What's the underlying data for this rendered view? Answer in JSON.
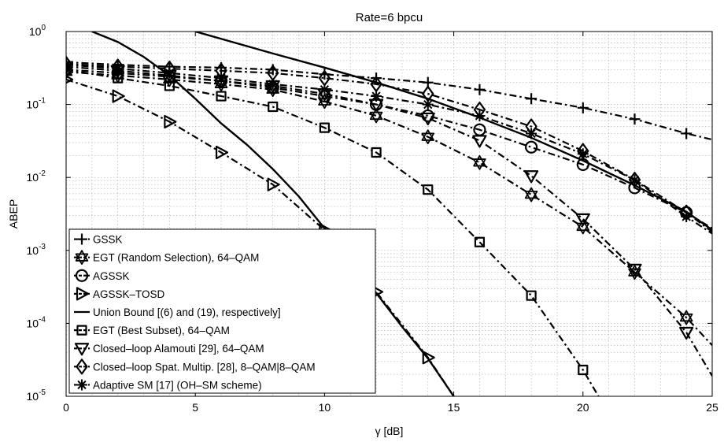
{
  "chart_data": {
    "type": "line",
    "title": "Rate=6 bpcu",
    "xlabel": "γ [dB]",
    "ylabel": "ABEP",
    "xlim": [
      0,
      25
    ],
    "ylim": [
      1e-05,
      1
    ],
    "yscale": "log",
    "grid": true,
    "legend_position": "bottom-left",
    "x_ticks": [
      "0",
      "5",
      "10",
      "15",
      "20",
      "25"
    ],
    "y_ticks": [
      {
        "base": "10",
        "exp": "-5"
      },
      {
        "base": "10",
        "exp": "-4"
      },
      {
        "base": "10",
        "exp": "-3"
      },
      {
        "base": "10",
        "exp": "-2"
      },
      {
        "base": "10",
        "exp": "-1"
      },
      {
        "base": "10",
        "exp": "0"
      }
    ],
    "series": [
      {
        "name": "GSSK",
        "marker": "plus",
        "line": "dashdot",
        "x": [
          0,
          2,
          4,
          6,
          8,
          10,
          12,
          14,
          16,
          18,
          20,
          22,
          24,
          25
        ],
        "y": [
          0.38,
          0.35,
          0.33,
          0.32,
          0.3,
          0.26,
          0.23,
          0.2,
          0.16,
          0.12,
          0.09,
          0.063,
          0.04,
          0.033
        ]
      },
      {
        "name": "EGT (Random Selection), 64–QAM",
        "marker": "hexagram",
        "line": "dashdot",
        "x": [
          0,
          2,
          4,
          6,
          8,
          10,
          12,
          14,
          16,
          18,
          20,
          22,
          24,
          25
        ],
        "y": [
          0.28,
          0.25,
          0.22,
          0.19,
          0.16,
          0.11,
          0.07,
          0.036,
          0.016,
          0.0058,
          0.0021,
          0.0005,
          0.00012,
          5e-05
        ]
      },
      {
        "name": "AGSSK",
        "marker": "circle",
        "line": "dashdot",
        "x": [
          0,
          2,
          4,
          6,
          8,
          10,
          12,
          14,
          16,
          18,
          20,
          22,
          24,
          25
        ],
        "y": [
          0.3,
          0.27,
          0.24,
          0.21,
          0.17,
          0.13,
          0.1,
          0.07,
          0.045,
          0.026,
          0.015,
          0.0072,
          0.0033,
          0.002
        ]
      },
      {
        "name": "AGSSK–TOSD",
        "marker": "triangle-right",
        "line": "dashdot",
        "x": [
          0,
          2,
          4,
          6,
          8,
          10,
          12,
          14,
          15
        ],
        "y": [
          0.22,
          0.13,
          0.058,
          0.022,
          0.008,
          0.0019,
          0.00027,
          3.4e-05,
          1e-05
        ]
      },
      {
        "name": "Union Bound [(6) and (19), respectively]",
        "marker": "none",
        "line": "solid",
        "segments": [
          {
            "x": [
              1,
              2,
              3,
              4,
              5,
              6,
              7,
              8,
              9,
              10,
              11,
              12,
              13,
              14,
              15
            ],
            "y": [
              1,
              0.72,
              0.45,
              0.25,
              0.12,
              0.055,
              0.028,
              0.013,
              0.0055,
              0.002,
              0.00075,
              0.00026,
              9e-05,
              3.3e-05,
              1e-05
            ]
          },
          {
            "x": [
              5,
              8,
              10,
              12,
              14,
              16,
              18,
              20,
              22,
              24,
              25
            ],
            "y": [
              1,
              0.5,
              0.32,
              0.2,
              0.12,
              0.066,
              0.035,
              0.017,
              0.0078,
              0.0034,
              0.0019
            ]
          }
        ]
      },
      {
        "name": "EGT (Best Subset), 64–QAM",
        "marker": "square",
        "line": "dashdot",
        "x": [
          0,
          2,
          4,
          6,
          8,
          10,
          12,
          14,
          16,
          18,
          20,
          20.6
        ],
        "y": [
          0.3,
          0.23,
          0.18,
          0.13,
          0.093,
          0.048,
          0.022,
          0.0068,
          0.0013,
          0.00024,
          2.3e-05,
          1e-05
        ]
      },
      {
        "name": "Closed–loop Alamouti [29], 64–QAM",
        "marker": "triangle-down",
        "line": "dashdot",
        "x": [
          0,
          2,
          4,
          6,
          8,
          10,
          12,
          14,
          16,
          18,
          20,
          22,
          24,
          25
        ],
        "y": [
          0.33,
          0.29,
          0.25,
          0.21,
          0.18,
          0.14,
          0.1,
          0.065,
          0.032,
          0.0105,
          0.0027,
          0.00055,
          7.5e-05,
          1.9e-05
        ]
      },
      {
        "name": "Closed–loop Spat. Multip. [28], 8–QAM|8–QAM",
        "marker": "diamond",
        "line": "dashdot",
        "x": [
          0,
          2,
          4,
          6,
          8,
          10,
          12,
          14,
          16,
          18,
          20,
          22,
          24,
          25
        ],
        "y": [
          0.36,
          0.33,
          0.31,
          0.29,
          0.27,
          0.23,
          0.19,
          0.14,
          0.085,
          0.05,
          0.023,
          0.0093,
          0.0033,
          0.0018
        ]
      },
      {
        "name": "Adaptive SM [17] (OH–SM scheme)",
        "marker": "asterisk",
        "line": "dashdot",
        "x": [
          0,
          2,
          4,
          6,
          8,
          10,
          12,
          14,
          16,
          18,
          20,
          22,
          24,
          25
        ],
        "y": [
          0.35,
          0.31,
          0.27,
          0.23,
          0.19,
          0.16,
          0.13,
          0.1,
          0.07,
          0.04,
          0.021,
          0.0092,
          0.0029,
          0.0017
        ]
      }
    ]
  }
}
